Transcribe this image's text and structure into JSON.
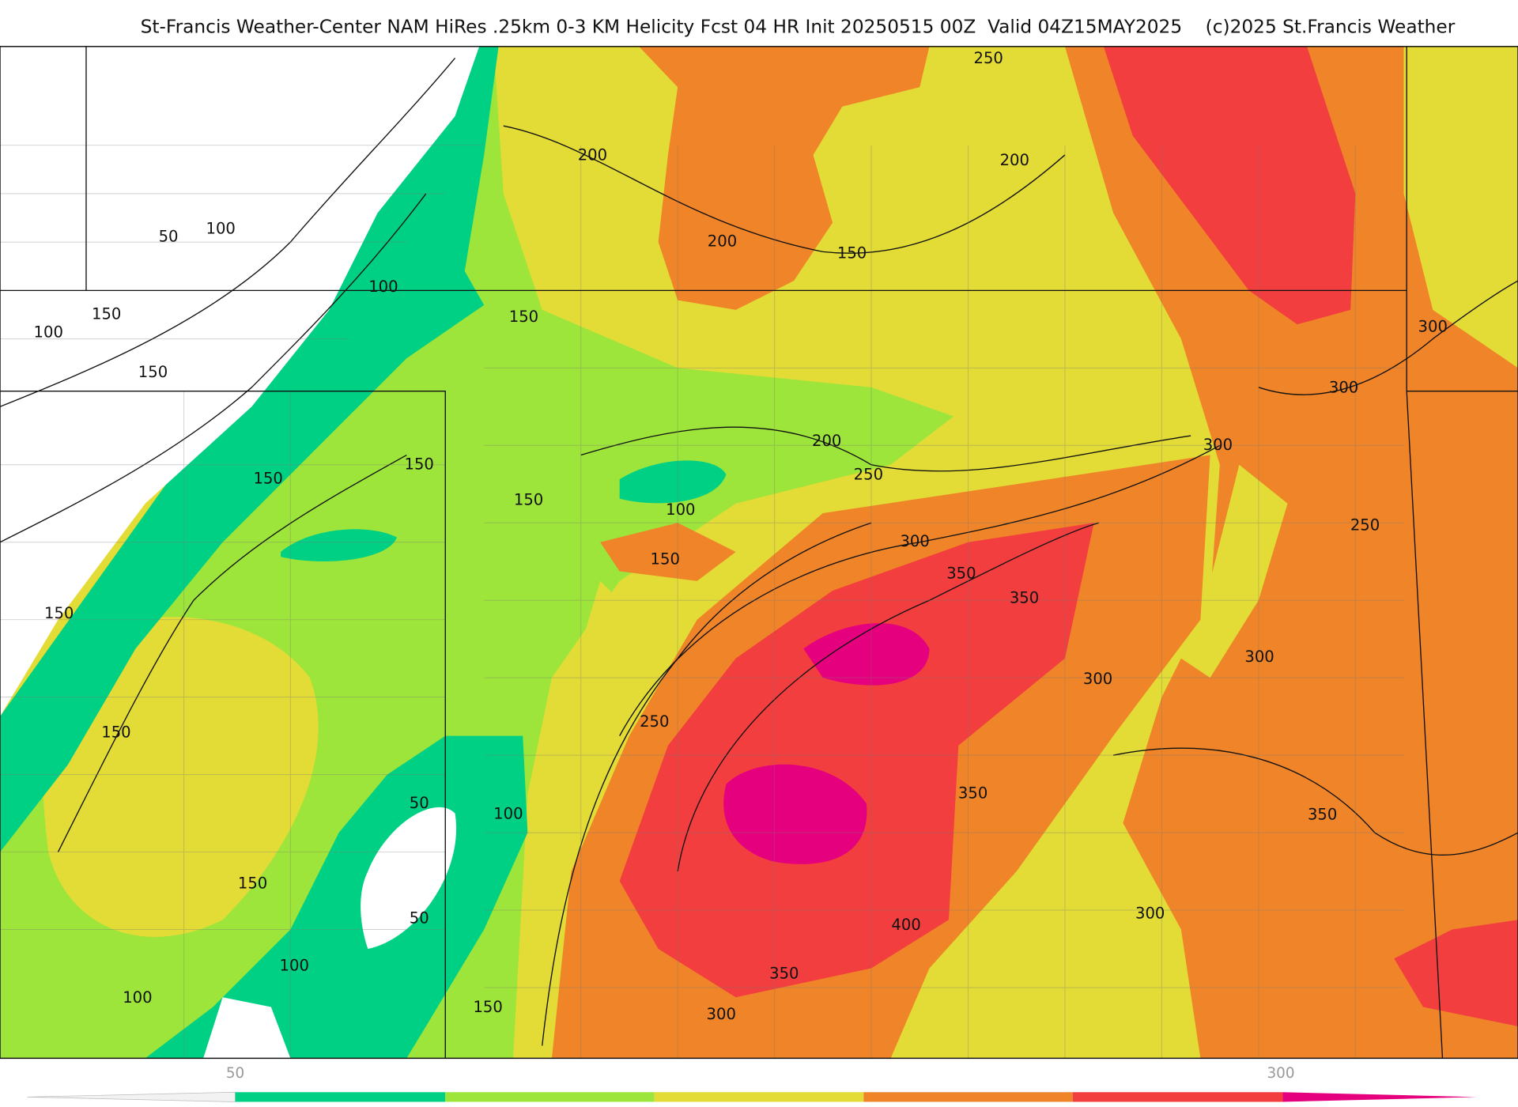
{
  "header": {
    "title": "St-Francis Weather-Center NAM HiRes .25km 0-3 KM Helicity Fcst 04 HR Init 20250515 00Z  Valid 04Z15MAY2025    (c)2025 St.Francis Weather"
  },
  "contour_labels": [
    "250",
    "200",
    "200",
    "200",
    "150",
    "50",
    "100",
    "100",
    "150",
    "100",
    "150",
    "150",
    "300",
    "300",
    "300",
    "200",
    "250",
    "150",
    "150",
    "150",
    "100",
    "250",
    "300",
    "150",
    "350",
    "350",
    "150",
    "300",
    "300",
    "250",
    "150",
    "350",
    "350",
    "50",
    "100",
    "150",
    "300",
    "50",
    "400",
    "100",
    "350",
    "100",
    "150",
    "300"
  ],
  "colorbar": {
    "labels": [
      "50",
      "300"
    ]
  }
}
